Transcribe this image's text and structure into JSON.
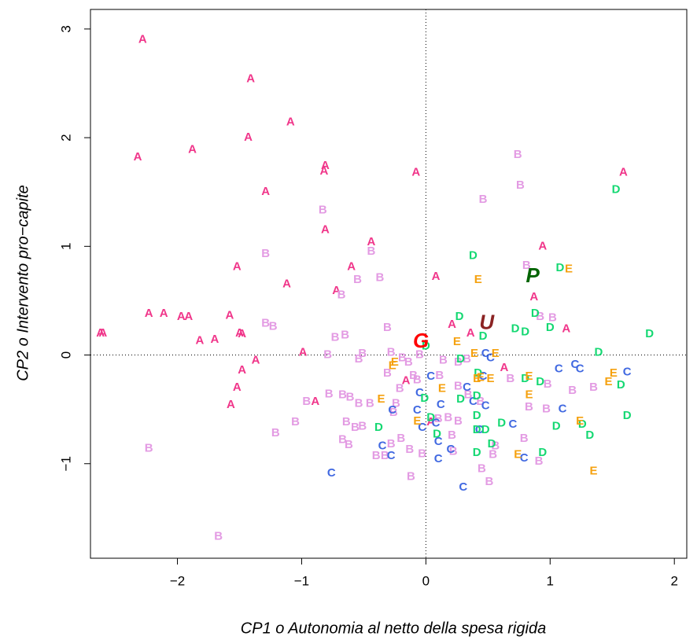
{
  "chart_data": {
    "type": "scatter",
    "x_label": "CP1  o Autonomia al netto della spesa rigida",
    "y_label": "CP2 o Intervento pro−capite",
    "xlim": [
      -2.7,
      2.1
    ],
    "ylim": [
      -1.87,
      3.18
    ],
    "xticks": [
      {
        "value": -2,
        "label": "−2"
      },
      {
        "value": -1,
        "label": "−1"
      },
      0,
      1,
      2
    ],
    "yticks": [
      {
        "value": -1,
        "label": "−1"
      },
      0,
      1,
      2,
      3
    ],
    "hline": 0,
    "vline": 0,
    "series": [
      {
        "name": "A",
        "color": "#f0368a",
        "x": [
          -2.28,
          -1.41,
          -1.09,
          -1.43,
          -2.32,
          -1.88,
          -0.81,
          -0.82,
          -0.08,
          -1.29,
          -0.81,
          -0.44,
          -1.52,
          -0.6,
          -1.12,
          -0.72,
          0.08,
          0.94,
          1.59,
          0.87,
          -2.62,
          -2.6,
          -2.23,
          -2.11,
          -1.97,
          -1.91,
          -1.58,
          -1.82,
          -1.7,
          -1.5,
          -1.48,
          -1.37,
          -1.48,
          -1.52,
          -1.57,
          -0.99,
          -0.89,
          0.21,
          1.13,
          0.63,
          -0.16,
          0.04,
          0.36
        ],
        "values": [
          2.9,
          2.54,
          2.14,
          2.0,
          1.82,
          1.89,
          1.74,
          1.69,
          1.68,
          1.5,
          1.15,
          1.04,
          0.81,
          0.81,
          0.65,
          0.59,
          0.72,
          1.0,
          1.68,
          0.53,
          0.2,
          0.2,
          0.38,
          0.38,
          0.35,
          0.35,
          0.36,
          0.13,
          0.14,
          0.2,
          0.19,
          -0.05,
          -0.14,
          -0.3,
          -0.46,
          0.02,
          -0.43,
          0.28,
          0.24,
          -0.12,
          -0.24,
          -0.62,
          0.2
        ]
      },
      {
        "name": "B",
        "color": "#e39be3",
        "x": [
          0.74,
          0.76,
          0.46,
          -0.83,
          -1.29,
          -0.44,
          -0.37,
          -0.55,
          -0.68,
          0.81,
          0.92,
          1.02,
          -1.29,
          -1.23,
          -0.73,
          -0.65,
          -0.31,
          -0.79,
          -0.51,
          -0.54,
          -0.28,
          -0.19,
          -0.14,
          -0.31,
          -0.1,
          -0.07,
          0.14,
          0.26,
          0.26,
          -0.21,
          -0.24,
          -0.78,
          -0.96,
          -0.67,
          -0.61,
          -0.54,
          -0.45,
          -1.05,
          -1.21,
          -0.64,
          -0.57,
          -0.51,
          -0.67,
          -0.62,
          -0.4,
          -0.33,
          -0.28,
          -0.2,
          -0.13,
          -0.03,
          -0.12,
          -2.23,
          -1.67,
          0.1,
          0.18,
          0.26,
          0.21,
          0.22,
          0.45,
          0.51,
          0.54,
          0.56,
          0.79,
          0.91,
          0.83,
          0.97,
          1.18,
          1.35,
          0.98,
          0.68,
          0.44,
          0.34,
          0.33,
          0.11,
          -0.05,
          -0.26
        ],
        "values": [
          1.84,
          1.56,
          1.43,
          1.33,
          0.93,
          0.95,
          0.71,
          0.69,
          0.55,
          0.82,
          0.35,
          0.34,
          0.29,
          0.26,
          0.16,
          0.18,
          0.25,
          0.0,
          0.01,
          -0.04,
          0.02,
          -0.03,
          -0.07,
          -0.17,
          -0.19,
          -0.23,
          -0.05,
          -0.07,
          -0.29,
          -0.31,
          -0.45,
          -0.36,
          -0.43,
          -0.37,
          -0.39,
          -0.45,
          -0.45,
          -0.62,
          -0.72,
          -0.62,
          -0.67,
          -0.66,
          -0.78,
          -0.83,
          -0.93,
          -0.93,
          -0.82,
          -0.77,
          -0.87,
          -0.91,
          -1.12,
          -0.86,
          -1.67,
          -0.59,
          -0.58,
          -0.61,
          -0.74,
          -0.89,
          -1.05,
          -1.17,
          -0.92,
          -0.84,
          -0.77,
          -0.98,
          -0.48,
          -0.5,
          -0.33,
          -0.3,
          -0.27,
          -0.22,
          -0.43,
          -0.37,
          -0.04,
          -0.19,
          0.0,
          -0.53
        ]
      },
      {
        "name": "C",
        "color": "#4169e1",
        "x": [
          -0.76,
          -0.28,
          -0.35,
          -0.27,
          -0.07,
          -0.05,
          0.04,
          -0.03,
          0.08,
          0.12,
          0.1,
          0.2,
          0.1,
          0.3,
          0.43,
          0.48,
          0.38,
          0.48,
          0.52,
          0.46,
          0.7,
          0.79,
          1.1,
          1.07,
          1.2,
          1.24,
          1.62,
          0.33
        ],
        "values": [
          -1.09,
          -0.93,
          -0.84,
          -0.51,
          -0.51,
          -0.35,
          -0.2,
          -0.67,
          -0.63,
          -0.46,
          -0.8,
          -0.87,
          -0.96,
          -1.22,
          -0.69,
          -0.47,
          -0.43,
          0.01,
          -0.03,
          -0.2,
          -0.64,
          -0.95,
          -0.5,
          -0.13,
          -0.09,
          -0.13,
          -0.16,
          -0.3
        ]
      },
      {
        "name": "D",
        "color": "#14d872",
        "x": [
          0.38,
          1.53,
          1.08,
          0.27,
          0.46,
          0.28,
          0.88,
          0.72,
          0.8,
          1.0,
          1.39,
          1.8,
          0.0,
          0.8,
          0.92,
          1.57,
          1.62,
          1.32,
          1.26,
          1.05,
          0.94,
          0.61,
          0.53,
          0.41,
          0.41,
          0.48,
          0.41,
          0.28,
          0.41,
          0.04,
          0.09,
          -0.01,
          -0.38,
          0.42
        ],
        "values": [
          0.91,
          1.52,
          0.8,
          0.35,
          0.17,
          -0.04,
          0.38,
          0.24,
          0.21,
          0.25,
          0.02,
          0.19,
          0.08,
          -0.22,
          -0.25,
          -0.28,
          -0.56,
          -0.74,
          -0.64,
          -0.66,
          -0.9,
          -0.63,
          -0.82,
          -0.9,
          -0.69,
          -0.69,
          -0.56,
          -0.41,
          -0.38,
          -0.58,
          -0.73,
          -0.4,
          -0.67,
          -0.17
        ]
      },
      {
        "name": "E",
        "color": "#f5a10f",
        "x": [
          0.42,
          1.15,
          0.25,
          0.39,
          0.56,
          -0.27,
          -0.25,
          0.41,
          0.44,
          0.52,
          0.13,
          0.83,
          0.83,
          -0.36,
          -0.07,
          0.74,
          1.24,
          1.35,
          1.51,
          1.47
        ],
        "values": [
          0.69,
          0.79,
          0.12,
          0.01,
          0.01,
          -0.1,
          -0.07,
          -0.22,
          -0.21,
          -0.22,
          -0.31,
          -0.2,
          -0.37,
          -0.41,
          -0.61,
          -0.92,
          -0.61,
          -1.07,
          -0.17,
          -0.25
        ]
      },
      {
        "name": "G",
        "color": "#ff0000",
        "emphasis": true,
        "x": [
          -0.04
        ],
        "values": [
          0.12
        ]
      },
      {
        "name": "U",
        "color": "#8b2323",
        "emphasis": true,
        "x": [
          0.49
        ],
        "values": [
          0.29
        ]
      },
      {
        "name": "P",
        "color": "#006400",
        "emphasis": true,
        "x": [
          0.86
        ],
        "values": [
          0.72
        ]
      }
    ]
  }
}
